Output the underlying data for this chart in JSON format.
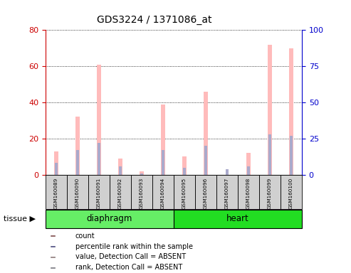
{
  "title": "GDS3224 / 1371086_at",
  "samples": [
    "GSM160089",
    "GSM160090",
    "GSM160091",
    "GSM160092",
    "GSM160093",
    "GSM160094",
    "GSM160095",
    "GSM160096",
    "GSM160097",
    "GSM160098",
    "GSM160099",
    "GSM160100"
  ],
  "groups": [
    {
      "name": "diaphragm",
      "color": "#66ee66",
      "samples_count": 6
    },
    {
      "name": "heart",
      "color": "#22dd22",
      "samples_count": 6
    }
  ],
  "value_absent": [
    13,
    32,
    61,
    9,
    2,
    39,
    10,
    46,
    0,
    12,
    72,
    70
  ],
  "rank_absent": [
    8,
    17,
    22,
    6,
    1,
    17,
    5,
    20,
    4,
    6,
    28,
    27
  ],
  "ylim_left": [
    0,
    80
  ],
  "ylim_right": [
    0,
    100
  ],
  "yticks_left": [
    0,
    20,
    40,
    60,
    80
  ],
  "yticks_right": [
    0,
    25,
    50,
    75,
    100
  ],
  "left_axis_color": "#cc0000",
  "right_axis_color": "#0000cc",
  "bar_color_absent_value": "#ffbbbb",
  "bar_color_absent_rank": "#aaaacc",
  "tissue_label": "tissue",
  "legend_items": [
    {
      "label": "count",
      "color": "#cc0000"
    },
    {
      "label": "percentile rank within the sample",
      "color": "#0000cc"
    },
    {
      "label": "value, Detection Call = ABSENT",
      "color": "#ffbbbb"
    },
    {
      "label": "rank, Detection Call = ABSENT",
      "color": "#aaaacc"
    }
  ]
}
